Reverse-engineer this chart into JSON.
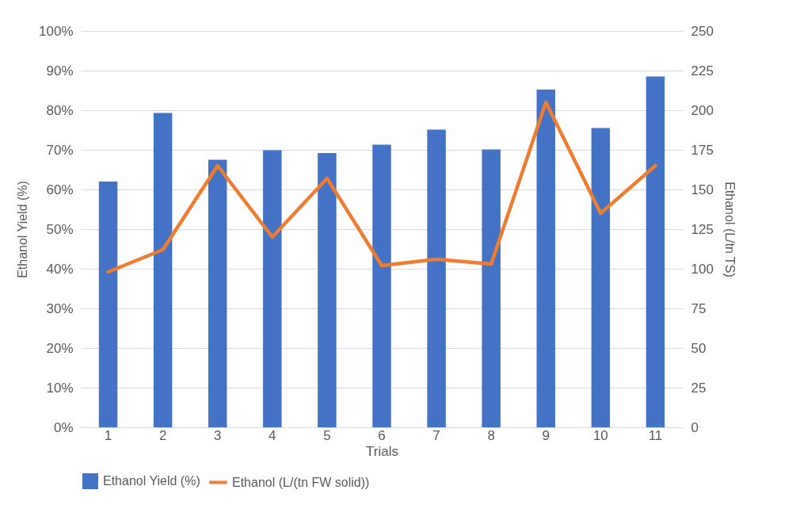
{
  "chart_data": {
    "type": "bar",
    "xlabel": "Trials",
    "ylabel": "Ethanol Yield (%)",
    "y2label": "Ethanol (L/tn TS)",
    "categories": [
      "1",
      "2",
      "3",
      "4",
      "5",
      "6",
      "7",
      "8",
      "9",
      "10",
      "11"
    ],
    "series": [
      {
        "name": "Ethanol Yield (%)",
        "color": "#4472c4",
        "values": [
          62.0,
          79.3,
          67.5,
          69.9,
          69.2,
          71.3,
          75.1,
          70.1,
          85.2,
          75.5,
          88.5
        ]
      },
      {
        "name": "Ethanol (L/(tn FW solid))",
        "type": "line",
        "axis": "y2",
        "color": "#ed7d31",
        "values": [
          98,
          112,
          165,
          120,
          157,
          102,
          106,
          103,
          205,
          135,
          165
        ]
      }
    ],
    "ylim": [
      0,
      100
    ],
    "yticks": [
      {
        "value": 0,
        "label": "0%"
      },
      {
        "value": 10,
        "label": "10%"
      },
      {
        "value": 20,
        "label": "20%"
      },
      {
        "value": 30,
        "label": "30%"
      },
      {
        "value": 40,
        "label": "40%"
      },
      {
        "value": 50,
        "label": "50%"
      },
      {
        "value": 60,
        "label": "60%"
      },
      {
        "value": 70,
        "label": "70%"
      },
      {
        "value": 80,
        "label": "80%"
      },
      {
        "value": 90,
        "label": "90%"
      },
      {
        "value": 100,
        "label": "100%"
      }
    ],
    "y2lim": [
      0,
      250
    ],
    "y2ticks": [
      0,
      25,
      50,
      75,
      100,
      125,
      150,
      175,
      200,
      225,
      250
    ],
    "grid": "y",
    "legend": "bottom"
  }
}
